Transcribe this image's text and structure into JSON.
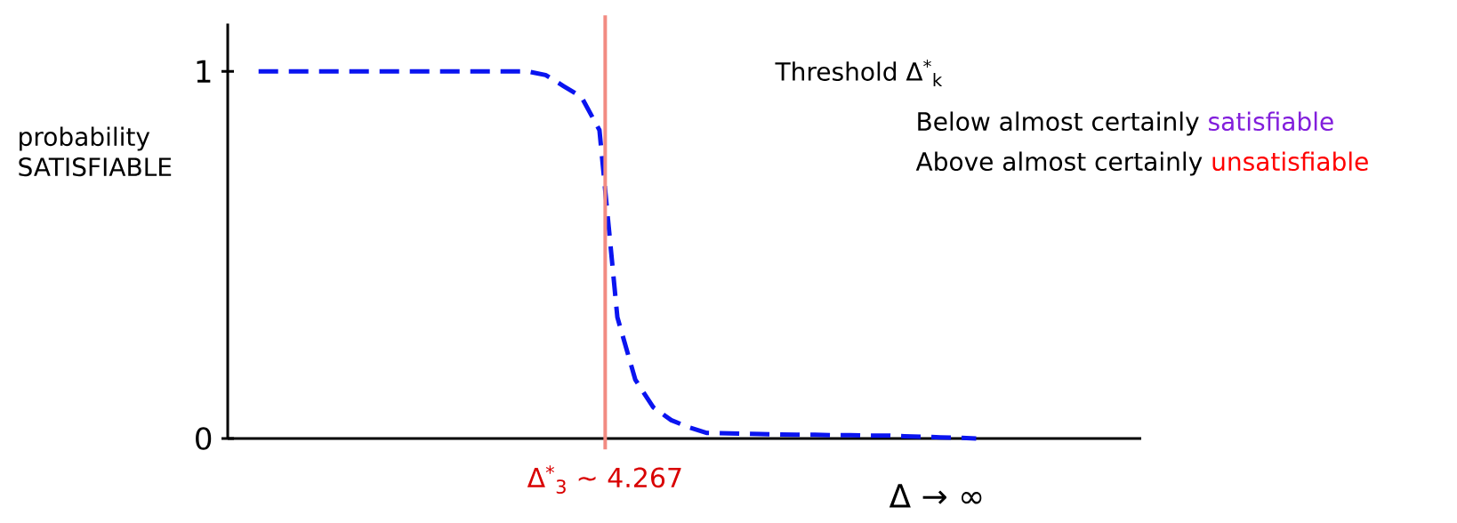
{
  "chart_data": {
    "type": "line",
    "xlabel": "Δ → ∞",
    "ylabel": "probability SATISFIABLE",
    "annotations": [
      "Threshold Δ$^{*}$$_{k}$",
      "Below almost certainly",
      "satisfiable",
      "Above almost certainly",
      "unsatisfiable",
      "Δ$^{*}$$_{3}$ ~ 4.267"
    ],
    "series": [
      {
        "color": "#0a14f0",
        "line_style": "dashed",
        "values": [
          1.0,
          1.0,
          1.0,
          1.0,
          1.0,
          1.0,
          1.0,
          1.0,
          1.0,
          1.0,
          1.0,
          1.0,
          1.0,
          1.0,
          1.0,
          1.0,
          0.99,
          0.96,
          0.93,
          0.84,
          0.33,
          0.16,
          0.085,
          0.05,
          0.03,
          0.015,
          0.014,
          0.013,
          0.012,
          0.011,
          0.01,
          0.01,
          0.009,
          0.009,
          0.008,
          0.008,
          0.006,
          0.005,
          0.003,
          0.002,
          0.0
        ]
      }
    ],
    "categories": [
      null,
      null,
      null,
      null,
      null,
      null,
      null,
      null,
      null,
      null,
      null,
      null,
      null,
      null,
      null,
      null,
      null,
      null,
      null,
      null,
      null,
      null,
      null,
      null,
      null,
      null,
      null,
      null,
      null,
      null,
      null,
      null,
      null,
      null,
      null,
      null,
      null,
      null,
      null,
      null,
      null
    ],
    "ylim": [
      0,
      1.13
    ],
    "yticks": [
      {
        "value": 0,
        "label": "0"
      },
      {
        "value": 1,
        "label": "1"
      }
    ],
    "marker": "none",
    "grid": false
  }
}
